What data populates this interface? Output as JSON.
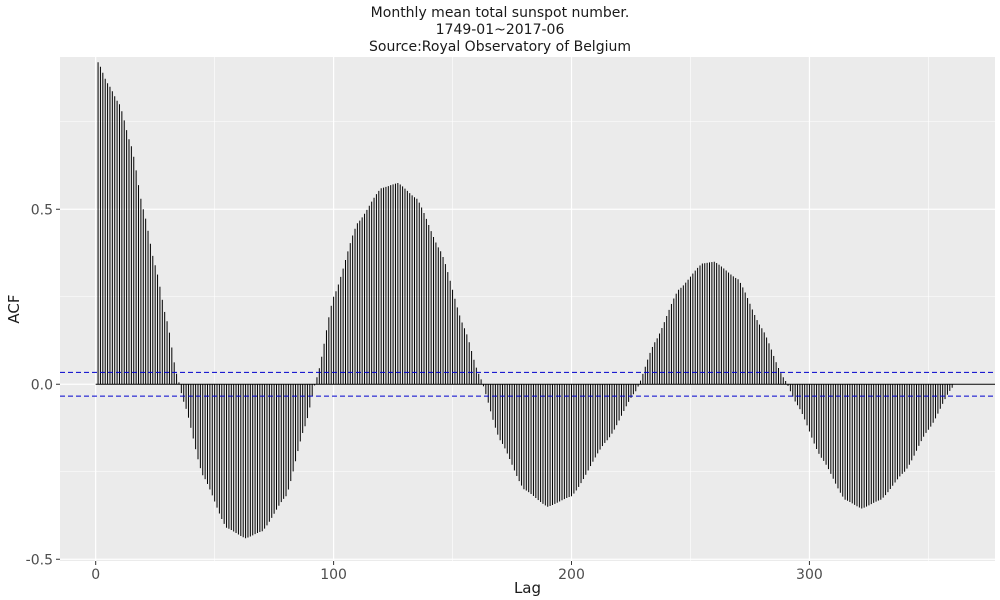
{
  "chart_data": {
    "type": "bar",
    "title_lines": [
      "Monthly mean total sunspot number.",
      "1749-01~2017-06",
      "Source:Royal Observatory of Belgium"
    ],
    "xlabel": "Lag",
    "ylabel": "ACF",
    "xlim": [
      -15,
      378
    ],
    "ylim": [
      -0.505,
      0.935
    ],
    "x_ticks": [
      0,
      100,
      200,
      300
    ],
    "x_tick_labels": [
      "0",
      "100",
      "200",
      "300"
    ],
    "y_ticks": [
      -0.5,
      0.0,
      0.5
    ],
    "y_tick_labels": [
      "-0.5",
      "0.0",
      "0.5"
    ],
    "grid": true,
    "background": "#EBEBEB",
    "grid_color": "#FFFFFF",
    "bar_color": "#000000",
    "zero_line_color": "#000000",
    "confidence_color": "#0000CD",
    "confidence_bounds": [
      0.034,
      -0.034
    ],
    "lag_range": [
      1,
      360
    ],
    "acf_anchor_points": {
      "lag": [
        1,
        5,
        10,
        15,
        20,
        25,
        30,
        34,
        37,
        45,
        55,
        63,
        70,
        80,
        88,
        93,
        100,
        110,
        120,
        127,
        135,
        145,
        155,
        161,
        170,
        180,
        190,
        200,
        215,
        227,
        235,
        245,
        255,
        260,
        270,
        280,
        289,
        295,
        305,
        315,
        322,
        330,
        340,
        350,
        360
      ],
      "acf": [
        0.92,
        0.86,
        0.8,
        0.68,
        0.5,
        0.34,
        0.18,
        0.03,
        -0.05,
        -0.26,
        -0.41,
        -0.44,
        -0.42,
        -0.32,
        -0.12,
        0.02,
        0.25,
        0.46,
        0.56,
        0.575,
        0.53,
        0.38,
        0.16,
        0.03,
        -0.16,
        -0.3,
        -0.35,
        -0.32,
        -0.16,
        -0.02,
        0.12,
        0.27,
        0.345,
        0.35,
        0.3,
        0.16,
        0.02,
        -0.06,
        -0.21,
        -0.33,
        -0.355,
        -0.33,
        -0.25,
        -0.13,
        -0.01
      ]
    }
  }
}
